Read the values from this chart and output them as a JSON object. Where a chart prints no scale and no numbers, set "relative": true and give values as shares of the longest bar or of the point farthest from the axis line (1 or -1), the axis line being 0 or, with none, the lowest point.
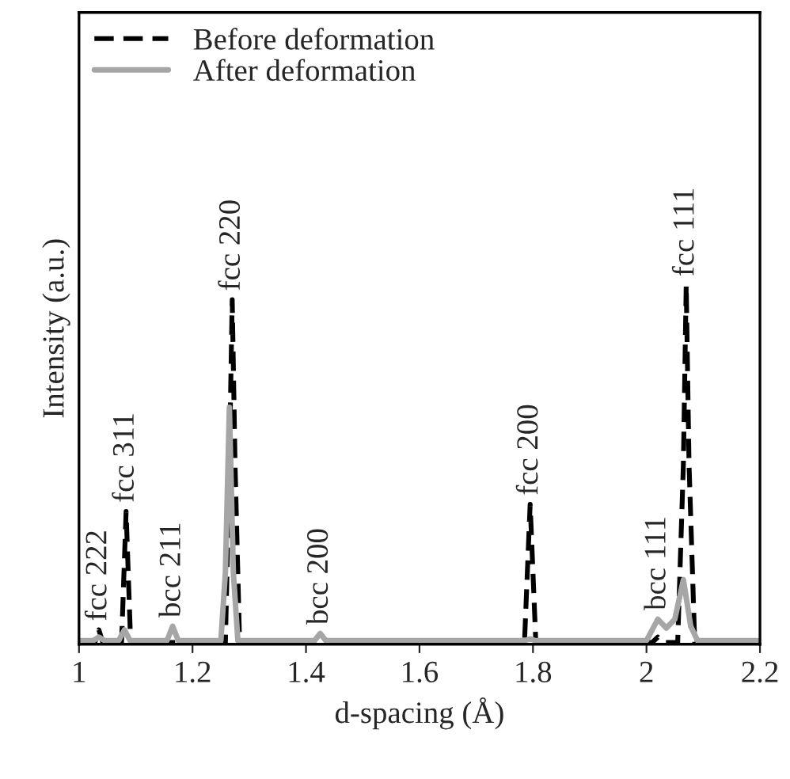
{
  "chart_data": {
    "type": "line",
    "relative": true,
    "xlabel": "d-spacing (Å)",
    "ylabel": "Intensity (a.u.)",
    "xlim": [
      1,
      2.2
    ],
    "xticks": [
      1,
      1.2,
      1.4,
      1.6,
      1.8,
      2,
      2.2
    ],
    "grid": false,
    "legend": "top left",
    "series": [
      {
        "name": "Before deformation",
        "color": "#000000",
        "line_style": "dashed",
        "x": [
          1.0,
          1.028,
          1.035,
          1.042,
          1.075,
          1.083,
          1.091,
          1.258,
          1.265,
          1.27,
          1.275,
          1.283,
          1.785,
          1.795,
          1.805,
          2.01,
          2.02,
          2.03,
          2.055,
          2.065,
          2.07,
          2.075,
          2.085,
          2.2
        ],
        "values": [
          0.005,
          0.005,
          0.04,
          0.005,
          0.005,
          0.37,
          0.005,
          0.005,
          0.5,
          0.96,
          0.5,
          0.005,
          0.005,
          0.39,
          0.005,
          0.005,
          0.02,
          0.005,
          0.005,
          0.5,
          1.0,
          0.5,
          0.005,
          0.005
        ]
      },
      {
        "name": "After deformation",
        "color": "#a6a6a6",
        "line_style": "solid",
        "x": [
          1.0,
          1.025,
          1.035,
          1.045,
          1.07,
          1.08,
          1.09,
          1.155,
          1.165,
          1.175,
          1.25,
          1.258,
          1.265,
          1.272,
          1.28,
          1.415,
          1.425,
          1.435,
          1.785,
          1.795,
          1.805,
          2.0,
          2.02,
          2.035,
          2.05,
          2.065,
          2.078,
          2.09,
          2.2
        ],
        "values": [
          0.01,
          0.01,
          0.02,
          0.01,
          0.01,
          0.04,
          0.01,
          0.01,
          0.05,
          0.01,
          0.01,
          0.2,
          0.66,
          0.2,
          0.01,
          0.01,
          0.03,
          0.01,
          0.01,
          0.015,
          0.01,
          0.01,
          0.07,
          0.045,
          0.07,
          0.18,
          0.05,
          0.01,
          0.01
        ]
      }
    ],
    "annotations": [
      {
        "text": "fcc 222",
        "x": 1.035,
        "y": 0.04
      },
      {
        "text": "fcc 311",
        "x": 1.083,
        "y": 0.37
      },
      {
        "text": "bcc 211",
        "x": 1.165,
        "y": 0.05
      },
      {
        "text": "fcc 220",
        "x": 1.27,
        "y": 0.96
      },
      {
        "text": "bcc 200",
        "x": 1.425,
        "y": 0.03
      },
      {
        "text": "fcc 200",
        "x": 1.795,
        "y": 0.39
      },
      {
        "text": "bcc 111",
        "x": 2.02,
        "y": 0.07
      },
      {
        "text": "fcc 111",
        "x": 2.07,
        "y": 1.0
      }
    ]
  }
}
